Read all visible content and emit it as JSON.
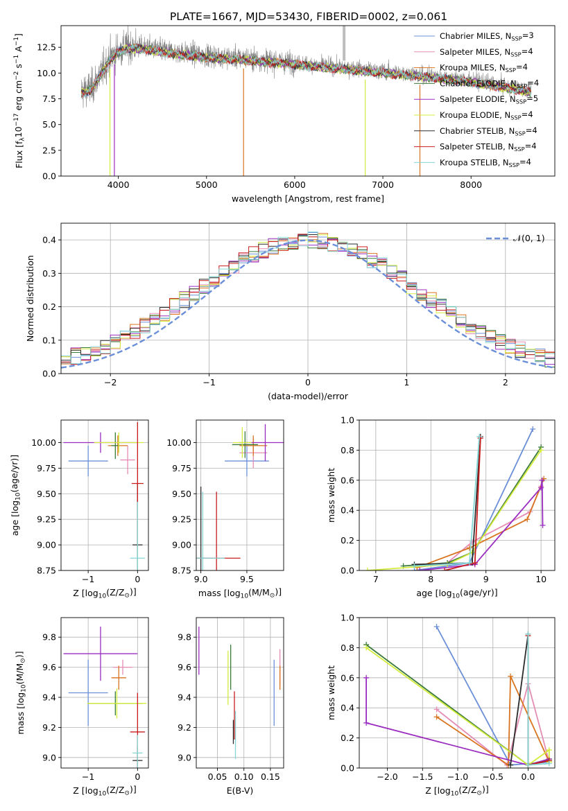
{
  "title": "PLATE=1667, MJD=53430, FIBERID=0002, z=0.061",
  "series_colors": {
    "chabrier_miles": "#6a8fd8",
    "salpeter_miles": "#e58cb4",
    "kroupa_miles": "#d9731e",
    "chabrier_elodie": "#3a7a3a",
    "salpeter_elodie": "#9b2cc0",
    "kroupa_elodie": "#d4ec3c",
    "chabrier_stelib": "#2b2b2b",
    "salpeter_stelib": "#c81c1c",
    "kroupa_stelib": "#86d6d6"
  },
  "legend": [
    {
      "key": "chabrier_miles",
      "label": "Chabrier MILES, N",
      "sub": "SSP",
      "tail": "=3"
    },
    {
      "key": "salpeter_miles",
      "label": "Salpeter MILES, N",
      "sub": "SSP",
      "tail": "=4"
    },
    {
      "key": "kroupa_miles",
      "label": "Kroupa MILES, N",
      "sub": "SSP",
      "tail": "=4"
    },
    {
      "key": "chabrier_elodie",
      "label": "Chabrier ELODIE, N",
      "sub": "SSP",
      "tail": "=4"
    },
    {
      "key": "salpeter_elodie",
      "label": "Salpeter ELODIE, N",
      "sub": "SSP",
      "tail": "=5"
    },
    {
      "key": "kroupa_elodie",
      "label": "Kroupa ELODIE, N",
      "sub": "SSP",
      "tail": "=4"
    },
    {
      "key": "chabrier_stelib",
      "label": "Chabrier STELIB, N",
      "sub": "SSP",
      "tail": "=4"
    },
    {
      "key": "salpeter_stelib",
      "label": "Salpeter STELIB, N",
      "sub": "SSP",
      "tail": "=4"
    },
    {
      "key": "kroupa_stelib",
      "label": "Kroupa STELIB, N",
      "sub": "SSP",
      "tail": "=4"
    }
  ],
  "chart_data": [
    {
      "id": "spectrum",
      "type": "line",
      "xlabel": "wavelength [Angstrom, rest frame]",
      "ylabel": "Flux [f_λ 10^-17 erg cm^-2 s^-1 A^-1]",
      "xlim": [
        3350,
        8950
      ],
      "ylim": [
        0,
        14.6
      ],
      "xticks": [
        4000,
        5000,
        6000,
        7000,
        8000
      ],
      "yticks": [
        0.0,
        2.5,
        5.0,
        7.5,
        10.0,
        12.5
      ],
      "data_color": "#808080",
      "continuum": [
        [
          3580,
          8.2
        ],
        [
          3700,
          8.6
        ],
        [
          3800,
          10.0
        ],
        [
          3900,
          11.4
        ],
        [
          4000,
          12.2
        ],
        [
          4100,
          12.6
        ],
        [
          4300,
          12.5
        ],
        [
          4600,
          12.1
        ],
        [
          5000,
          11.7
        ],
        [
          5500,
          11.4
        ],
        [
          6000,
          11.0
        ],
        [
          6500,
          10.6
        ],
        [
          7000,
          10.2
        ],
        [
          7500,
          9.8
        ],
        [
          8000,
          9.3
        ],
        [
          8500,
          8.6
        ],
        [
          8680,
          8.3
        ]
      ],
      "grid": false
    },
    {
      "id": "residuals",
      "type": "step",
      "xlabel": "(data-model)/error",
      "ylabel": "Normed distribution",
      "xlim": [
        -2.5,
        2.5
      ],
      "ylim": [
        0,
        0.45
      ],
      "xticks": [
        -2,
        -1,
        0,
        1,
        2
      ],
      "yticks": [
        0.0,
        0.1,
        0.2,
        0.3,
        0.4
      ],
      "grid": true,
      "reference_label": "𝒩(0, 1)",
      "reference_color": "#6a8fd8"
    },
    {
      "id": "age_vs_Z",
      "type": "errorbar",
      "xlabel": "Z [log10(Z/Z☉)]",
      "ylabel": "age  [log10(age/yr)]",
      "xlim": [
        -1.55,
        0.22
      ],
      "ylim": [
        8.75,
        10.22
      ],
      "xticks": [
        -1,
        0
      ],
      "yticks": [
        8.75,
        9.0,
        9.25,
        9.5,
        9.75,
        10.0
      ],
      "grid": true,
      "points": [
        {
          "key": "chabrier_miles",
          "x": -1.0,
          "xerr": 0.4,
          "y": 9.82,
          "yerr": 0.15
        },
        {
          "key": "salpeter_miles",
          "x": -0.2,
          "xerr": 0.15,
          "y": 9.83,
          "yerr": 0.14
        },
        {
          "key": "kroupa_miles",
          "x": -0.4,
          "xerr": 0.2,
          "y": 9.97,
          "yerr": 0.1
        },
        {
          "key": "chabrier_elodie",
          "x": -0.45,
          "xerr": 0.08,
          "y": 9.97,
          "yerr": 0.13
        },
        {
          "key": "salpeter_elodie",
          "x": -0.75,
          "xerr": 0.75,
          "y": 10.0,
          "yerr": 0.1
        },
        {
          "key": "kroupa_elodie",
          "x": -0.38,
          "xerr": 0.5,
          "y": 10.0,
          "yerr": 0.1
        },
        {
          "key": "chabrier_stelib",
          "x": 0.0,
          "xerr": 0.1,
          "y": 9.0,
          "yerr": 0.6
        },
        {
          "key": "salpeter_stelib",
          "x": 0.0,
          "xerr": 0.12,
          "y": 9.6,
          "yerr": 0.6
        },
        {
          "key": "kroupa_stelib",
          "x": 0.0,
          "xerr": 0.15,
          "y": 8.87,
          "yerr": 0.55
        }
      ]
    },
    {
      "id": "age_vs_mass",
      "type": "errorbar",
      "xlabel": "mass [log10(M/M☉)]",
      "ylabel": "",
      "xlim": [
        8.95,
        9.9
      ],
      "ylim": [
        8.75,
        10.22
      ],
      "xticks": [
        9.0,
        9.5
      ],
      "yticks": [
        8.75,
        9.0,
        9.25,
        9.5,
        9.75,
        10.0
      ],
      "grid": true,
      "points": [
        {
          "key": "chabrier_miles",
          "x": 9.5,
          "xerr": 0.24,
          "y": 9.82,
          "yerr": 0.15
        },
        {
          "key": "salpeter_miles",
          "x": 9.57,
          "xerr": 0.15,
          "y": 9.9,
          "yerr": 0.15
        },
        {
          "key": "kroupa_miles",
          "x": 9.57,
          "xerr": 0.15,
          "y": 9.97,
          "yerr": 0.1
        },
        {
          "key": "chabrier_elodie",
          "x": 9.48,
          "xerr": 0.14,
          "y": 9.98,
          "yerr": 0.13
        },
        {
          "key": "salpeter_elodie",
          "x": 9.7,
          "xerr": 0.28,
          "y": 10.0,
          "yerr": 0.18
        },
        {
          "key": "kroupa_elodie",
          "x": 9.45,
          "xerr": 0.1,
          "y": 10.0,
          "yerr": 0.15
        },
        {
          "key": "chabrier_stelib",
          "x": 9.0,
          "xerr": 0.04,
          "y": 8.87,
          "yerr": 0.7
        },
        {
          "key": "salpeter_stelib",
          "x": 9.17,
          "xerr": 0.26,
          "y": 8.87,
          "yerr": 0.65
        },
        {
          "key": "kroupa_stelib",
          "x": 9.02,
          "xerr": 0.24,
          "y": 8.87,
          "yerr": 0.65
        }
      ]
    },
    {
      "id": "mass_weight_vs_age",
      "type": "line",
      "xlabel": "age  [log10(age/yr)]",
      "ylabel": "mass weight",
      "xlim": [
        6.7,
        10.25
      ],
      "ylim": [
        0,
        1
      ],
      "xticks": [
        7,
        8,
        9,
        10
      ],
      "yticks": [
        0.0,
        0.2,
        0.4,
        0.6,
        0.8,
        1.0
      ],
      "grid": true,
      "series": [
        {
          "key": "chabrier_miles",
          "x": [
            7.7,
            8.7,
            9.85
          ],
          "y": [
            0.0,
            0.05,
            0.94
          ]
        },
        {
          "key": "salpeter_miles",
          "x": [
            7.75,
            8.3,
            8.75,
            9.8,
            10.0
          ],
          "y": [
            0.02,
            0.05,
            0.19,
            0.39,
            0.56
          ]
        },
        {
          "key": "kroupa_miles",
          "x": [
            7.75,
            8.7,
            9.75,
            10.05
          ],
          "y": [
            0.02,
            0.15,
            0.34,
            0.61
          ]
        },
        {
          "key": "chabrier_elodie",
          "x": [
            7.5,
            8.3,
            8.75,
            10.0
          ],
          "y": [
            0.03,
            0.05,
            0.12,
            0.82
          ]
        },
        {
          "key": "salpeter_elodie",
          "x": [
            7.8,
            8.8,
            10.0,
            10.02,
            10.03
          ],
          "y": [
            0.0,
            0.04,
            0.55,
            0.6,
            0.3
          ]
        },
        {
          "key": "kroupa_elodie",
          "x": [
            6.85,
            8.3,
            8.75,
            10.0
          ],
          "y": [
            0.0,
            0.04,
            0.12,
            0.8
          ]
        },
        {
          "key": "chabrier_stelib",
          "x": [
            7.7,
            8.75,
            8.9
          ],
          "y": [
            0.04,
            0.05,
            0.89
          ]
        },
        {
          "key": "salpeter_stelib",
          "x": [
            8.25,
            8.8,
            8.9
          ],
          "y": [
            0.0,
            0.05,
            0.88
          ]
        },
        {
          "key": "kroupa_stelib",
          "x": [
            7.7,
            8.7,
            8.88
          ],
          "y": [
            0.03,
            0.05,
            0.89
          ]
        }
      ]
    },
    {
      "id": "mass_vs_Z",
      "type": "errorbar",
      "xlabel": "Z [log10(Z/Z☉)]",
      "ylabel": "mass [log10(M/M☉)]",
      "xlim": [
        -1.55,
        0.22
      ],
      "ylim": [
        8.93,
        9.93
      ],
      "xticks": [
        -1,
        0
      ],
      "yticks": [
        9.0,
        9.2,
        9.4,
        9.6,
        9.8
      ],
      "grid": true,
      "points": [
        {
          "key": "chabrier_miles",
          "x": -1.0,
          "xerr": 0.4,
          "y": 9.43,
          "yerr": 0.22
        },
        {
          "key": "salpeter_miles",
          "x": -0.3,
          "xerr": 0.2,
          "y": 9.6,
          "yerr": 0.05
        },
        {
          "key": "kroupa_miles",
          "x": -0.38,
          "xerr": 0.15,
          "y": 9.53,
          "yerr": 0.08
        },
        {
          "key": "chabrier_elodie",
          "x": -0.45,
          "xerr": 0.55,
          "y": 9.36,
          "yerr": 0.08
        },
        {
          "key": "salpeter_elodie",
          "x": -0.75,
          "xerr": 0.75,
          "y": 9.69,
          "yerr": 0.18
        },
        {
          "key": "kroupa_elodie",
          "x": -0.42,
          "xerr": 0.6,
          "y": 9.36,
          "yerr": 0.1
        },
        {
          "key": "chabrier_stelib",
          "x": 0.0,
          "xerr": 0.1,
          "y": 8.98,
          "yerr": 0.1
        },
        {
          "key": "salpeter_stelib",
          "x": 0.0,
          "xerr": 0.15,
          "y": 9.17,
          "yerr": 0.26
        },
        {
          "key": "kroupa_stelib",
          "x": 0.0,
          "xerr": 0.1,
          "y": 9.03,
          "yerr": 0.12
        }
      ]
    },
    {
      "id": "mass_vs_ebv",
      "type": "errorbar",
      "xlabel": "E(B-V)",
      "ylabel": "",
      "xlim": [
        0.01,
        0.175
      ],
      "ylim": [
        8.93,
        9.93
      ],
      "xticks": [
        0.05,
        0.1,
        0.15
      ],
      "yticks": [
        9.0,
        9.2,
        9.4,
        9.6,
        9.8
      ],
      "grid": true,
      "points": [
        {
          "key": "chabrier_miles",
          "x": 0.157,
          "xerr": 0,
          "y": 9.43,
          "yerr": 0.22
        },
        {
          "key": "salpeter_miles",
          "x": 0.168,
          "xerr": 0,
          "y": 9.6,
          "yerr": 0.12
        },
        {
          "key": "kroupa_miles",
          "x": 0.168,
          "xerr": 0,
          "y": 9.53,
          "yerr": 0.08
        },
        {
          "key": "chabrier_elodie",
          "x": 0.075,
          "xerr": 0,
          "y": 9.6,
          "yerr": 0.15
        },
        {
          "key": "salpeter_elodie",
          "x": 0.015,
          "xerr": 0,
          "y": 9.71,
          "yerr": 0.16
        },
        {
          "key": "kroupa_elodie",
          "x": 0.07,
          "xerr": 0,
          "y": 9.53,
          "yerr": 0.18
        },
        {
          "key": "chabrier_stelib",
          "x": 0.08,
          "xerr": 0,
          "y": 9.17,
          "yerr": 0.08
        },
        {
          "key": "salpeter_stelib",
          "x": 0.082,
          "xerr": 0,
          "y": 9.28,
          "yerr": 0.16
        },
        {
          "key": "kroupa_stelib",
          "x": 0.084,
          "xerr": 0,
          "y": 9.15,
          "yerr": 0.16
        }
      ]
    },
    {
      "id": "mass_weight_vs_Z",
      "type": "line",
      "xlabel": "Z [log10(Z/Z☉)]",
      "ylabel": "mass weight",
      "xlim": [
        -2.4,
        0.38
      ],
      "ylim": [
        0,
        1
      ],
      "xticks": [
        -2.0,
        -1.5,
        -1.0,
        -0.5,
        0.0
      ],
      "yticks": [
        0.0,
        0.2,
        0.4,
        0.6,
        0.8,
        1.0
      ],
      "grid": true,
      "series": [
        {
          "key": "chabrier_miles",
          "x": [
            -1.3,
            -0.25,
            0.3
          ],
          "y": [
            0.94,
            0.02,
            0.04
          ]
        },
        {
          "key": "salpeter_miles",
          "x": [
            -1.3,
            -0.3,
            0.0,
            0.3
          ],
          "y": [
            0.39,
            0.02,
            0.56,
            0.04
          ]
        },
        {
          "key": "kroupa_miles",
          "x": [
            -1.3,
            -0.28,
            -0.25,
            0.3
          ],
          "y": [
            0.34,
            0.02,
            0.61,
            0.04
          ]
        },
        {
          "key": "chabrier_elodie",
          "x": [
            -2.3,
            0.0,
            0.3
          ],
          "y": [
            0.82,
            0.02,
            0.06
          ]
        },
        {
          "key": "salpeter_elodie",
          "x": [
            -2.3,
            -2.3,
            0.0,
            0.3
          ],
          "y": [
            0.6,
            0.3,
            0.02,
            0.06
          ]
        },
        {
          "key": "kroupa_elodie",
          "x": [
            -2.3,
            0.0,
            0.3,
            0.3
          ],
          "y": [
            0.8,
            0.02,
            0.12,
            0.04
          ]
        },
        {
          "key": "chabrier_stelib",
          "x": [
            -0.25,
            0.0,
            0.0,
            0.3
          ],
          "y": [
            0.02,
            0.89,
            0.02,
            0.05
          ]
        },
        {
          "key": "salpeter_stelib",
          "x": [
            0.0,
            0.0,
            0.3
          ],
          "y": [
            0.88,
            0.02,
            0.05
          ]
        },
        {
          "key": "kroupa_stelib",
          "x": [
            0.0,
            0.0,
            0.3
          ],
          "y": [
            0.89,
            0.02,
            0.03
          ]
        }
      ]
    }
  ]
}
